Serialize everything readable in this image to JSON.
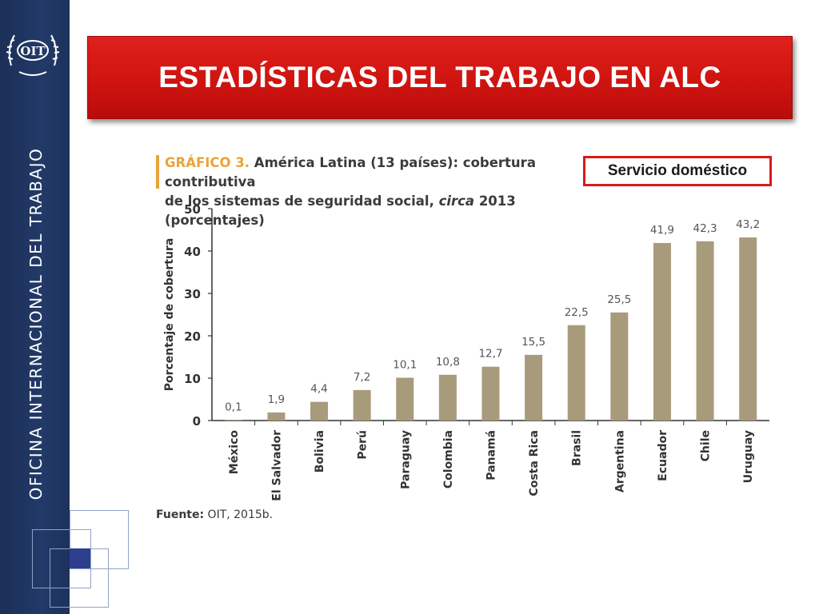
{
  "slide": {
    "title": "ESTADÍSTICAS DEL TRABAJO EN ALC",
    "sidebar_text": "OFICINA INTERNACIONAL DEL TRABAJO",
    "logo_text": "OIT",
    "badge": "Servicio doméstico",
    "source_label": "Fuente:",
    "source_text": " OIT, 2015b."
  },
  "chart_header": {
    "label": "GRÁFICO 3.",
    "line1": " América Latina (13 países): cobertura contributiva",
    "line2a": "de los sistemas de seguridad social, ",
    "line2_italic": "circa",
    "line2b": " 2013 (porcentajes)"
  },
  "colors": {
    "bar": "#a89b7b",
    "banner": "#d3150f",
    "sidebar": "#1f3461",
    "accent": "#e8a43b"
  },
  "chart_data": {
    "type": "bar",
    "categories": [
      "México",
      "El Salvador",
      "Bolivia",
      "Perú",
      "Paraguay",
      "Colombia",
      "Panamá",
      "Costa Rica",
      "Brasil",
      "Argentina",
      "Ecuador",
      "Chile",
      "Uruguay"
    ],
    "values": [
      0.1,
      1.9,
      4.4,
      7.2,
      10.1,
      10.8,
      12.7,
      15.5,
      22.5,
      25.5,
      41.9,
      42.3,
      43.2
    ],
    "value_labels": [
      "0,1",
      "1,9",
      "4,4",
      "7,2",
      "10,1",
      "10,8",
      "12,7",
      "15,5",
      "22,5",
      "25,5",
      "41,9",
      "42,3",
      "43,2"
    ],
    "ylabel": "Porcentaje de cobertura",
    "ylim": [
      0,
      50
    ],
    "yticks": [
      0,
      10,
      20,
      30,
      40,
      50
    ],
    "grid": false
  }
}
